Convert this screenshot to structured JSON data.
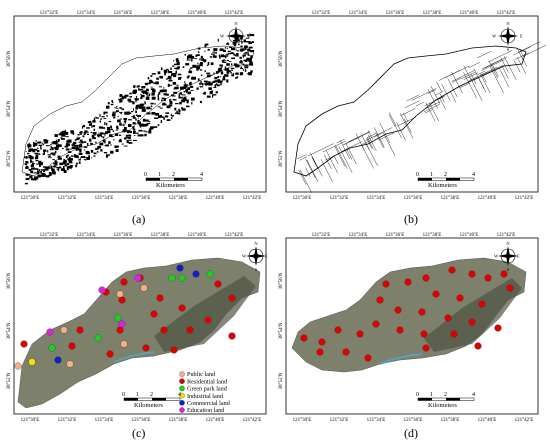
{
  "panels": {
    "a": {
      "caption": "(a)",
      "lon_labels_top": [
        "121°32′E",
        "121°34′E",
        "121°36′E",
        "121°38′E",
        "121°40′E",
        "121°42′E"
      ],
      "lon_labels_bottom": [
        "121°30′E",
        "121°32′E",
        "121°34′E",
        "121°36′E",
        "121°38′E",
        "121°40′E",
        "121°42′E"
      ],
      "lat_labels": [
        "38°56′N",
        "38°54′N",
        "38°52′N"
      ],
      "scale_ticks": [
        "0",
        "1",
        "2",
        "4"
      ],
      "scale_unit": "Kilometers",
      "compass": {
        "n": "N",
        "s": "S",
        "e": "E",
        "w": "W"
      }
    },
    "b": {
      "caption": "(b)",
      "lon_labels_top": [
        "121°32′E",
        "121°34′E",
        "121°36′E",
        "121°38′E",
        "121°40′E",
        "121°42′E"
      ],
      "lon_labels_bottom": [
        "121°30′E",
        "121°32′E",
        "121°34′E",
        "121°36′E",
        "121°38′E",
        "121°40′E",
        "121°42′E"
      ],
      "lat_labels": [
        "38°56′N",
        "38°54′N",
        "38°52′N"
      ],
      "scale_ticks": [
        "0",
        "1",
        "2",
        "4"
      ],
      "scale_unit": "Kilometers",
      "compass": {
        "n": "N",
        "s": "S",
        "e": "E",
        "w": "W"
      }
    },
    "c": {
      "caption": "(c)",
      "lon_labels_top": [
        "121°32′E",
        "121°34′E",
        "121°36′E",
        "121°38′E",
        "121°40′E",
        "121°42′E"
      ],
      "lon_labels_bottom": [
        "121°30′E",
        "121°32′E",
        "121°34′E",
        "121°36′E",
        "121°38′E",
        "121°40′E",
        "121°42′E"
      ],
      "lat_labels": [
        "38°56′N",
        "38°54′N",
        "38°52′N"
      ],
      "scale_ticks": [
        "0",
        "1",
        "2",
        "4"
      ],
      "scale_unit": "Kilometers",
      "compass": {
        "n": "N",
        "s": "S",
        "e": "E",
        "w": "W"
      },
      "legend": [
        {
          "label": "Public land",
          "color": "#f4b183"
        },
        {
          "label": "Residential land",
          "color": "#e00000"
        },
        {
          "label": "Green park land",
          "color": "#22cc22"
        },
        {
          "label": "Industrial land",
          "color": "#ffe000"
        },
        {
          "label": "Commercial land",
          "color": "#1020c8"
        },
        {
          "label": "Education land",
          "color": "#e020e0"
        }
      ]
    },
    "d": {
      "caption": "(d)",
      "lon_labels_top": [
        "121°32′E",
        "121°34′E",
        "121°36′E",
        "121°38′E",
        "121°40′E",
        "121°42′E"
      ],
      "lon_labels_bottom": [
        "121°30′E",
        "121°32′E",
        "121°34′E",
        "121°36′E",
        "121°38′E",
        "121°40′E",
        "121°42′E"
      ],
      "lat_labels": [
        "38°56′N",
        "38°54′N",
        "38°52′N"
      ],
      "scale_ticks": [
        "0",
        "1",
        "2",
        "4"
      ],
      "scale_unit": "Kilometers",
      "compass": {
        "n": "N",
        "s": "S",
        "e": "E",
        "w": "W"
      }
    }
  },
  "colors": {
    "frame": "#000000",
    "imagery_base": "#8a8a78",
    "imagery_dark": "#5a5a4a",
    "water": "#4a90a8"
  },
  "points": {
    "c": [
      {
        "cls": "Residential land",
        "color": "#e00000"
      },
      {
        "cls": "Commercial land",
        "color": "#1020c8"
      }
    ]
  }
}
